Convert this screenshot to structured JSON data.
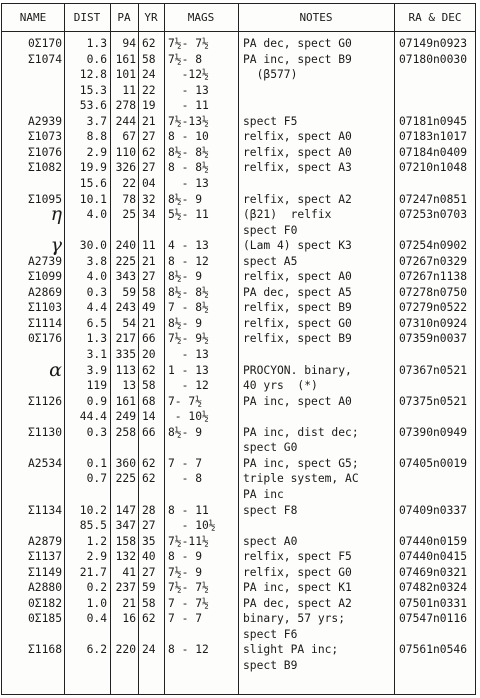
{
  "headers": {
    "name": "NAME",
    "dist": "DIST",
    "pa": "PA",
    "yr": "YR",
    "mags": "MAGS",
    "notes": "NOTES",
    "radec": "RA & DEC"
  },
  "rows": [
    {
      "name": "0Σ170",
      "dist": "1.3",
      "pa": "94",
      "yr": "62",
      "mags": "7½- 7½",
      "notes": "PA dec, spect G0",
      "radec": "07149n0923"
    },
    {
      "name": "Σ1074",
      "dist": "0.6",
      "pa": "161",
      "yr": "58",
      "mags": "7½- 8",
      "notes": "PA inc, spect B9",
      "radec": "07180n0030"
    },
    {
      "name": "",
      "dist": "12.8",
      "pa": "101",
      "yr": "24",
      "mags": "  -12½",
      "notes": "  (β577)",
      "radec": ""
    },
    {
      "name": "",
      "dist": "15.3",
      "pa": "11",
      "yr": "22",
      "mags": "  - 13",
      "notes": "",
      "radec": ""
    },
    {
      "name": "",
      "dist": "53.6",
      "pa": "278",
      "yr": "19",
      "mags": "  - 11",
      "notes": "",
      "radec": ""
    },
    {
      "name": "A2939",
      "dist": "3.7",
      "pa": "244",
      "yr": "21",
      "mags": "7½-13½",
      "notes": "spect F5",
      "radec": "07181n0945"
    },
    {
      "name": "Σ1073",
      "dist": "8.8",
      "pa": "67",
      "yr": "27",
      "mags": "8 - 10",
      "notes": "relfix, spect A0",
      "radec": "07183n1017"
    },
    {
      "name": "Σ1076",
      "dist": "2.9",
      "pa": "110",
      "yr": "62",
      "mags": "8½- 8½",
      "notes": "relfix, spect A0",
      "radec": "07184n0409"
    },
    {
      "name": "Σ1082",
      "dist": "19.9",
      "pa": "326",
      "yr": "27",
      "mags": "8 - 8½",
      "notes": "relfix, spect A3",
      "radec": "07210n1048"
    },
    {
      "name": "",
      "dist": "15.6",
      "pa": "22",
      "yr": "04",
      "mags": "  - 13",
      "notes": "",
      "radec": ""
    },
    {
      "name": "Σ1095",
      "dist": "10.1",
      "pa": "78",
      "yr": "32",
      "mags": "8½- 9",
      "notes": "relfix, spect A2",
      "radec": "07247n0851"
    },
    {
      "name": "η",
      "dist": "4.0",
      "pa": "25",
      "yr": "34",
      "mags": "5½- 11",
      "notes": "(β21)  relfix",
      "radec": "07253n0703"
    },
    {
      "name": "",
      "dist": "",
      "pa": "",
      "yr": "",
      "mags": "",
      "notes": "spect F0",
      "radec": ""
    },
    {
      "name": "γ",
      "dist": "30.0",
      "pa": "240",
      "yr": "11",
      "mags": "4 - 13",
      "notes": "(Lam 4) spect K3",
      "radec": "07254n0902"
    },
    {
      "name": "A2739",
      "dist": "3.8",
      "pa": "225",
      "yr": "21",
      "mags": "8 - 12",
      "notes": "spect A5",
      "radec": "07267n0329"
    },
    {
      "name": "Σ1099",
      "dist": "4.0",
      "pa": "343",
      "yr": "27",
      "mags": "8½- 9",
      "notes": "relfix, spect A0",
      "radec": "07267n1138"
    },
    {
      "name": "A2869",
      "dist": "0.3",
      "pa": "59",
      "yr": "58",
      "mags": "8½- 8½",
      "notes": "PA dec, spect A5",
      "radec": "07278n0750"
    },
    {
      "name": "Σ1103",
      "dist": "4.4",
      "pa": "243",
      "yr": "49",
      "mags": "7 - 8½",
      "notes": "relfix, spect B9",
      "radec": "07279n0522"
    },
    {
      "name": "Σ1114",
      "dist": "6.5",
      "pa": "54",
      "yr": "21",
      "mags": "8½- 9",
      "notes": "relfix, spect G0",
      "radec": "07310n0924"
    },
    {
      "name": "0Σ176",
      "dist": "1.3",
      "pa": "217",
      "yr": "66",
      "mags": "7½- 9½",
      "notes": "relfix, spect B9",
      "radec": "07359n0037"
    },
    {
      "name": "",
      "dist": "3.1",
      "pa": "335",
      "yr": "20",
      "mags": "  - 13",
      "notes": "",
      "radec": ""
    },
    {
      "name": "α",
      "dist": "3.9",
      "pa": "113",
      "yr": "62",
      "mags": "1 - 13",
      "notes": "PROCYON. binary,",
      "radec": "07367n0521"
    },
    {
      "name": "",
      "dist": "119",
      "pa": "13",
      "yr": "58",
      "mags": "  - 12",
      "notes": "40 yrs  (*)",
      "radec": ""
    },
    {
      "name": "Σ1126",
      "dist": "0.9",
      "pa": "161",
      "yr": "68",
      "mags": "7- 7½",
      "notes": "PA inc, spect A0",
      "radec": "07375n0521"
    },
    {
      "name": "",
      "dist": "44.4",
      "pa": "249",
      "yr": "14",
      "mags": " - 10½",
      "notes": "",
      "radec": ""
    },
    {
      "name": "Σ1130",
      "dist": "0.3",
      "pa": "258",
      "yr": "66",
      "mags": "8½- 9",
      "notes": "PA inc, dist dec;",
      "radec": "07390n0949"
    },
    {
      "name": "",
      "dist": "",
      "pa": "",
      "yr": "",
      "mags": "",
      "notes": "spect G0",
      "radec": ""
    },
    {
      "name": "A2534",
      "dist": "0.1",
      "pa": "360",
      "yr": "62",
      "mags": "7 - 7",
      "notes": "PA inc, spect G5;",
      "radec": "07405n0019"
    },
    {
      "name": "",
      "dist": "0.7",
      "pa": "225",
      "yr": "62",
      "mags": "  - 8",
      "notes": "triple system, AC",
      "radec": ""
    },
    {
      "name": "",
      "dist": "",
      "pa": "",
      "yr": "",
      "mags": "",
      "notes": "PA inc",
      "radec": ""
    },
    {
      "name": "Σ1134",
      "dist": "10.2",
      "pa": "147",
      "yr": "28",
      "mags": "8 - 11",
      "notes": "spect F8",
      "radec": "07409n0337"
    },
    {
      "name": "",
      "dist": "85.5",
      "pa": "347",
      "yr": "27",
      "mags": "  - 10½",
      "notes": "",
      "radec": ""
    },
    {
      "name": "A2879",
      "dist": "1.2",
      "pa": "158",
      "yr": "35",
      "mags": "7½-11½",
      "notes": "spect A0",
      "radec": "07440n0159"
    },
    {
      "name": "Σ1137",
      "dist": "2.9",
      "pa": "132",
      "yr": "40",
      "mags": "8 - 9",
      "notes": "relfix, spect F5",
      "radec": "07440n0415"
    },
    {
      "name": "Σ1149",
      "dist": "21.7",
      "pa": "41",
      "yr": "27",
      "mags": "7½- 9",
      "notes": "relfix, spect G0",
      "radec": "07469n0321"
    },
    {
      "name": "A2880",
      "dist": "0.2",
      "pa": "237",
      "yr": "59",
      "mags": "7½- 7½",
      "notes": "PA inc, spect K1",
      "radec": "07482n0324"
    },
    {
      "name": "0Σ182",
      "dist": "1.0",
      "pa": "21",
      "yr": "58",
      "mags": "7 - 7½",
      "notes": "PA dec, spect A2",
      "radec": "07501n0331"
    },
    {
      "name": "0Σ185",
      "dist": "0.4",
      "pa": "16",
      "yr": "62",
      "mags": "7 - 7",
      "notes": "binary, 57 yrs;",
      "radec": "07547n0116"
    },
    {
      "name": "",
      "dist": "",
      "pa": "",
      "yr": "",
      "mags": "",
      "notes": "spect F6",
      "radec": ""
    },
    {
      "name": "Σ1168",
      "dist": "6.2",
      "pa": "220",
      "yr": "24",
      "mags": "8 - 12",
      "notes": "slight PA inc;",
      "radec": "07561n0546"
    },
    {
      "name": "",
      "dist": "",
      "pa": "",
      "yr": "",
      "mags": "",
      "notes": "spect B9",
      "radec": ""
    }
  ]
}
